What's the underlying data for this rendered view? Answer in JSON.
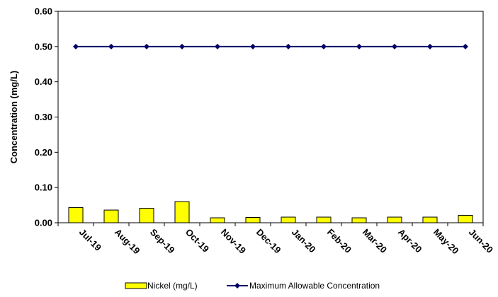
{
  "chart_data": {
    "type": "bar",
    "title": "",
    "xlabel": "",
    "ylabel": "Concentration (mg/L)",
    "ylim": [
      0,
      0.6
    ],
    "yticks": [
      "0.00",
      "0.10",
      "0.20",
      "0.30",
      "0.40",
      "0.50",
      "0.60"
    ],
    "grid": false,
    "legend_position": "bottom",
    "categories": [
      "Jul-19",
      "Aug-19",
      "Sep-19",
      "Oct-19",
      "Nov-19",
      "Dec-19",
      "Jan-20",
      "Feb-20",
      "Mar-20",
      "Apr-20",
      "May-20",
      "Jun-20"
    ],
    "series": [
      {
        "name": "Nickel (mg/L)",
        "type": "bar",
        "color": "#ffff00",
        "values": [
          0.043,
          0.036,
          0.041,
          0.06,
          0.014,
          0.015,
          0.016,
          0.016,
          0.014,
          0.016,
          0.016,
          0.021
        ]
      },
      {
        "name": "Maximum Allowable Concentration",
        "type": "line",
        "color": "#000066",
        "values": [
          0.5,
          0.5,
          0.5,
          0.5,
          0.5,
          0.5,
          0.5,
          0.5,
          0.5,
          0.5,
          0.5,
          0.5
        ]
      }
    ]
  }
}
